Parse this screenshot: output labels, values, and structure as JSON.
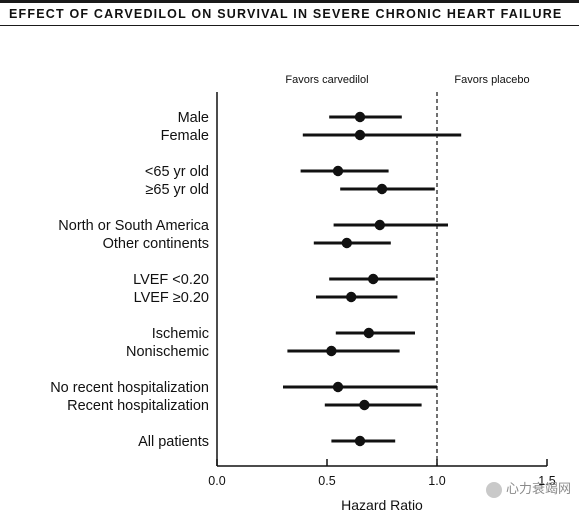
{
  "header": {
    "title": "EFFECT OF CARVEDILOL ON SURVIVAL IN SEVERE CHRONIC HEART FAILURE"
  },
  "watermark": {
    "text": "心力衰竭网"
  },
  "colors": {
    "ink": "#111111",
    "rule": "#1a1a1a",
    "watermark": "#8a8a8a"
  },
  "chart_data": {
    "type": "forest",
    "title": "EFFECT OF CARVEDILOL ON SURVIVAL IN SEVERE CHRONIC HEART FAILURE",
    "xlabel": "Hazard Ratio",
    "xlim": [
      0,
      1.5
    ],
    "xticks": [
      "0.0",
      "0.5",
      "1.0",
      "1.5"
    ],
    "xtick_values": [
      0,
      0.5,
      1.0,
      1.5
    ],
    "reference_line": 1.0,
    "annotation_left": "Favors carvedilol",
    "annotation_right": "Favors placebo",
    "rows": [
      {
        "label": "Male",
        "hr": 0.65,
        "lo": 0.51,
        "hi": 0.84,
        "group": 1
      },
      {
        "label": "Female",
        "hr": 0.65,
        "lo": 0.39,
        "hi": 1.11,
        "group": 1
      },
      {
        "label": "<65 yr old",
        "hr": 0.55,
        "lo": 0.38,
        "hi": 0.78,
        "group": 2
      },
      {
        "label": "≥65 yr old",
        "hr": 0.75,
        "lo": 0.56,
        "hi": 0.99,
        "group": 2
      },
      {
        "label": "North or South America",
        "hr": 0.74,
        "lo": 0.53,
        "hi": 1.05,
        "group": 3
      },
      {
        "label": "Other continents",
        "hr": 0.59,
        "lo": 0.44,
        "hi": 0.79,
        "group": 3
      },
      {
        "label": "LVEF <0.20",
        "hr": 0.71,
        "lo": 0.51,
        "hi": 0.99,
        "group": 4
      },
      {
        "label": "LVEF ≥0.20",
        "hr": 0.61,
        "lo": 0.45,
        "hi": 0.82,
        "group": 4
      },
      {
        "label": "Ischemic",
        "hr": 0.69,
        "lo": 0.54,
        "hi": 0.9,
        "group": 5
      },
      {
        "label": "Nonischemic",
        "hr": 0.52,
        "lo": 0.32,
        "hi": 0.83,
        "group": 5
      },
      {
        "label": "No recent hospitalization",
        "hr": 0.55,
        "lo": 0.3,
        "hi": 1.0,
        "group": 6
      },
      {
        "label": "Recent hospitalization",
        "hr": 0.67,
        "lo": 0.49,
        "hi": 0.93,
        "group": 6
      },
      {
        "label": "All patients",
        "hr": 0.65,
        "lo": 0.52,
        "hi": 0.81,
        "group": 7
      }
    ],
    "grid": false
  }
}
